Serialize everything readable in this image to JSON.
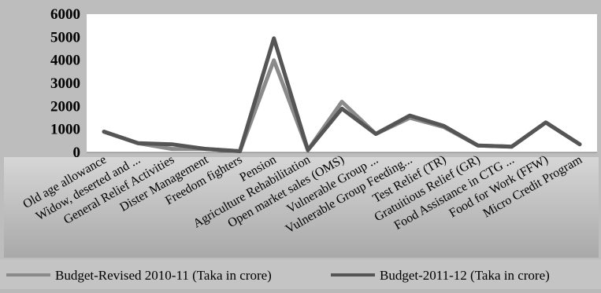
{
  "chart_data": {
    "type": "line",
    "title": "",
    "xlabel": "",
    "ylabel": "",
    "ylim": [
      0,
      6000
    ],
    "yticks": [
      0,
      1000,
      2000,
      3000,
      4000,
      5000,
      6000
    ],
    "grid": false,
    "legend_position": "bottom",
    "categories": [
      "Old age allowance",
      "Widow, deserted and ...",
      "General Relief Activities",
      "Dister Management",
      "Freedom fighters",
      "Pension",
      "Agriculture Rehabilitation",
      "Open market sales (OMS)",
      "Vulnerable Group ...",
      "Vulnerable Group Feeding...",
      "Test Relief (TR)",
      "Gratuitious Relief (GR)",
      "Food Assistance in CTG ...",
      "Food for Work (FFW)",
      "Micro Credit Program"
    ],
    "series": [
      {
        "name": "Budget-Revised 2010-11 (Taka in crore)",
        "color": "#8a8a8a",
        "values": [
          900,
          400,
          150,
          150,
          50,
          4000,
          100,
          2200,
          800,
          1500,
          1100,
          300,
          250,
          1300,
          350
        ]
      },
      {
        "name": "Budget-2011-12 (Taka in crore)",
        "color": "#555555",
        "values": [
          900,
          400,
          350,
          150,
          50,
          4950,
          100,
          1900,
          800,
          1600,
          1150,
          300,
          250,
          1300,
          350
        ]
      }
    ]
  }
}
